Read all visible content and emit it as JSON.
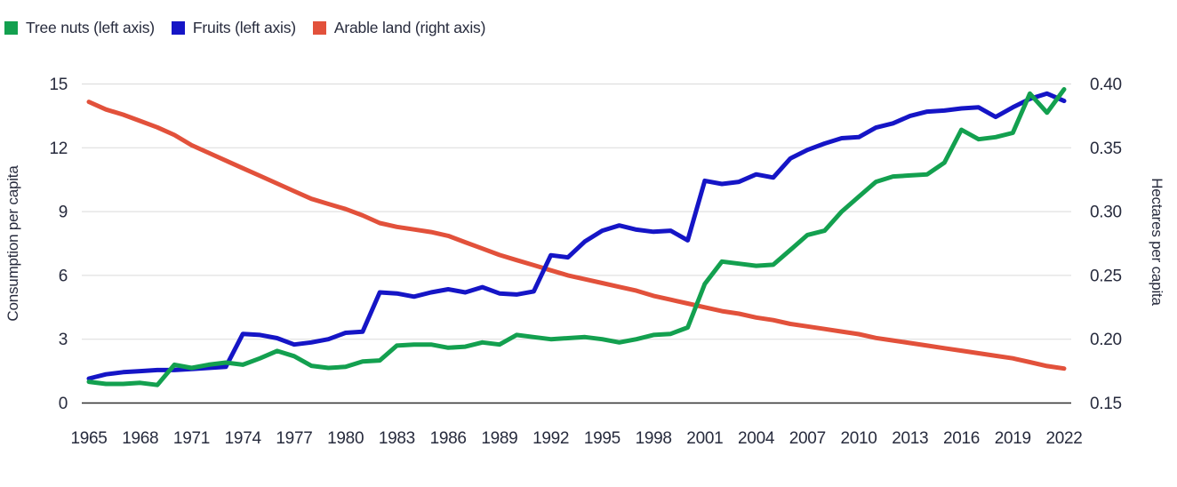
{
  "legend": {
    "items": [
      {
        "label": "Tree nuts (left axis)",
        "color": "#13A04F"
      },
      {
        "label": "Fruits (left axis)",
        "color": "#1515C6"
      },
      {
        "label": "Arable land (right axis)",
        "color": "#E2513B"
      }
    ]
  },
  "chart_data": {
    "type": "line",
    "title": "",
    "grid": true,
    "legend_position": "top-left",
    "background": "#ffffff",
    "colors": {
      "tree_nuts": "#13A04F",
      "fruits": "#1515C6",
      "arable_land": "#E2513B",
      "text": "#272B3D",
      "gridline": "#DADADA",
      "baseline": "#2E2E2E"
    },
    "x_axis": {
      "range": [
        1965,
        2022
      ],
      "tick_labels": [
        "1965",
        "1968",
        "1971",
        "1974",
        "1977",
        "1980",
        "1983",
        "1986",
        "1989",
        "1992",
        "1995",
        "1998",
        "2001",
        "2004",
        "2007",
        "2010",
        "2013",
        "2016",
        "2019",
        "2022"
      ]
    },
    "left_axis": {
      "label": "Consumption per capita",
      "range": [
        0,
        15
      ],
      "ticks": [
        0,
        3,
        6,
        9,
        12,
        15
      ]
    },
    "right_axis": {
      "label": "Hectares per capita",
      "range": [
        0.15,
        0.4
      ],
      "ticks": [
        0.15,
        0.2,
        0.25,
        0.3,
        0.35,
        0.4
      ]
    },
    "years": [
      1965,
      1966,
      1967,
      1968,
      1969,
      1970,
      1971,
      1972,
      1973,
      1974,
      1975,
      1976,
      1977,
      1978,
      1979,
      1980,
      1981,
      1982,
      1983,
      1984,
      1985,
      1986,
      1987,
      1988,
      1989,
      1990,
      1991,
      1992,
      1993,
      1994,
      1995,
      1996,
      1997,
      1998,
      1999,
      2000,
      2001,
      2002,
      2003,
      2004,
      2005,
      2006,
      2007,
      2008,
      2009,
      2010,
      2011,
      2012,
      2013,
      2014,
      2015,
      2016,
      2017,
      2018,
      2019,
      2020,
      2021,
      2022
    ],
    "series": [
      {
        "name": "Tree nuts (left axis)",
        "slug": "tree-nuts",
        "axis": "left",
        "color": "#13A04F",
        "values": [
          1.0,
          0.9,
          0.9,
          0.95,
          0.85,
          1.8,
          1.65,
          1.8,
          1.9,
          1.8,
          2.1,
          2.45,
          2.2,
          1.75,
          1.65,
          1.7,
          1.95,
          2.0,
          2.7,
          2.75,
          2.75,
          2.6,
          2.65,
          2.85,
          2.75,
          3.2,
          3.1,
          3.0,
          3.05,
          3.1,
          3.0,
          2.85,
          3.0,
          3.2,
          3.25,
          3.55,
          5.6,
          6.65,
          6.55,
          6.45,
          6.5,
          7.2,
          7.9,
          8.1,
          9.0,
          9.7,
          10.4,
          10.65,
          10.7,
          10.75,
          11.3,
          12.85,
          12.4,
          12.5,
          12.7,
          14.55,
          13.65,
          14.75
        ]
      },
      {
        "name": "Fruits (left axis)",
        "slug": "fruits",
        "axis": "left",
        "color": "#1515C6",
        "values": [
          1.15,
          1.35,
          1.45,
          1.5,
          1.55,
          1.55,
          1.6,
          1.65,
          1.7,
          3.25,
          3.2,
          3.05,
          2.75,
          2.85,
          3.0,
          3.3,
          3.35,
          5.2,
          5.15,
          5.0,
          5.2,
          5.35,
          5.2,
          5.45,
          5.15,
          5.1,
          5.25,
          6.95,
          6.85,
          7.6,
          8.1,
          8.35,
          8.15,
          8.05,
          8.1,
          7.65,
          10.45,
          10.3,
          10.4,
          10.75,
          10.6,
          11.5,
          11.9,
          12.2,
          12.45,
          12.5,
          12.95,
          13.15,
          13.5,
          13.7,
          13.75,
          13.85,
          13.9,
          13.45,
          13.9,
          14.3,
          14.55,
          14.2
        ]
      },
      {
        "name": "Arable land (right axis)",
        "slug": "arable-land",
        "axis": "right",
        "color": "#E2513B",
        "values": [
          0.386,
          0.38,
          0.376,
          0.371,
          0.366,
          0.36,
          0.352,
          0.346,
          0.34,
          0.334,
          0.328,
          0.322,
          0.316,
          0.31,
          0.306,
          0.302,
          0.297,
          0.291,
          0.288,
          0.286,
          0.284,
          0.281,
          0.276,
          0.271,
          0.266,
          0.262,
          0.258,
          0.254,
          0.25,
          0.247,
          0.244,
          0.241,
          0.238,
          0.234,
          0.231,
          0.228,
          0.225,
          0.222,
          0.22,
          0.217,
          0.215,
          0.212,
          0.21,
          0.208,
          0.206,
          0.204,
          0.201,
          0.199,
          0.197,
          0.195,
          0.193,
          0.191,
          0.189,
          0.187,
          0.185,
          0.182,
          0.179,
          0.177
        ]
      }
    ]
  }
}
